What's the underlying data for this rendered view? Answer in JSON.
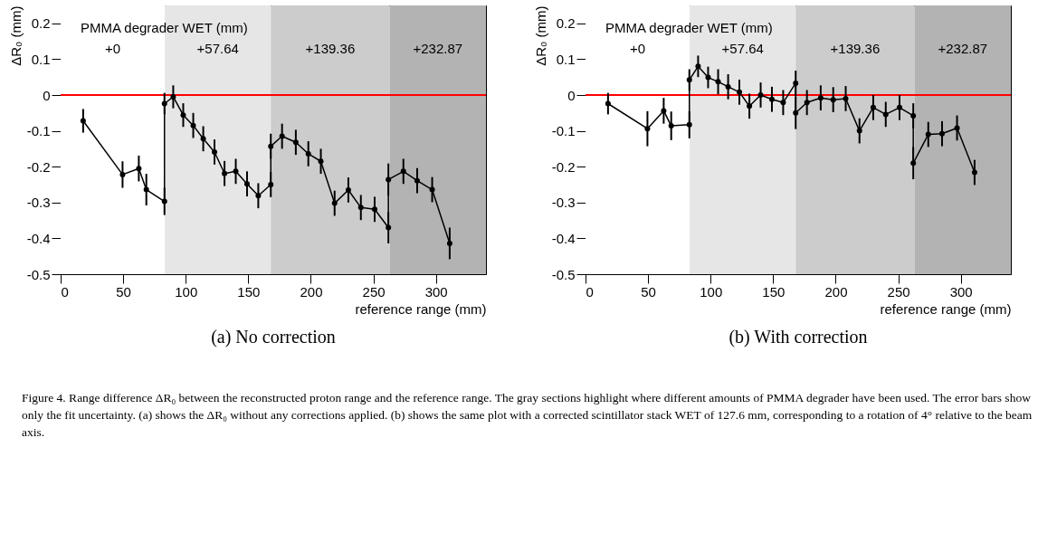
{
  "chart_data": [
    {
      "type": "line",
      "title": "(a) No correction",
      "xlabel": "reference range (mm)",
      "ylabel": "ΔR₀ (mm)",
      "xlim": [
        0,
        340
      ],
      "ylim": [
        -0.5,
        0.25
      ],
      "xticks": [
        0,
        50,
        100,
        150,
        200,
        250,
        300
      ],
      "yticks": [
        -0.5,
        -0.4,
        -0.3,
        -0.2,
        -0.1,
        0,
        0.1,
        0.2
      ],
      "marker": "circle",
      "line_style": "solid",
      "x": [
        18,
        49.5,
        62.5,
        68.5,
        83,
        83,
        90,
        98,
        106,
        114,
        123,
        131,
        140,
        149,
        158,
        168,
        168,
        177,
        188,
        198,
        208,
        219,
        230,
        240,
        251,
        262,
        262,
        274,
        285,
        297,
        311
      ],
      "series": [
        {
          "color": "#000000",
          "values": [
            -0.072,
            -0.222,
            -0.205,
            -0.264,
            -0.297,
            -0.024,
            -0.005,
            -0.056,
            -0.085,
            -0.122,
            -0.159,
            -0.219,
            -0.213,
            -0.248,
            -0.281,
            -0.25,
            -0.143,
            -0.115,
            -0.132,
            -0.164,
            -0.185,
            -0.302,
            -0.265,
            -0.314,
            -0.319,
            -0.37,
            -0.236,
            -0.213,
            -0.239,
            -0.264,
            -0.414
          ],
          "errors": [
            0.033,
            0.037,
            0.036,
            0.044,
            0.038,
            0.03,
            0.032,
            0.033,
            0.035,
            0.035,
            0.035,
            0.035,
            0.035,
            0.035,
            0.035,
            0.035,
            0.035,
            0.035,
            0.035,
            0.035,
            0.035,
            0.035,
            0.035,
            0.035,
            0.035,
            0.044,
            0.045,
            0.035,
            0.035,
            0.035,
            0.044
          ]
        }
      ],
      "ref_lines": [
        {
          "axis": "y",
          "value": 0,
          "color": "#ff0000"
        }
      ],
      "bands": [
        {
          "axis": "x",
          "from": 0,
          "to": 83.3,
          "label": "+0",
          "color": "#ffffff"
        },
        {
          "axis": "x",
          "from": 83.3,
          "to": 168,
          "label": "+57.64",
          "color": "#e6e6e6"
        },
        {
          "axis": "x",
          "from": 168,
          "to": 263,
          "label": "+139.36",
          "color": "#cccccc"
        },
        {
          "axis": "x",
          "from": 263,
          "to": 340,
          "label": "+232.87",
          "color": "#b3b3b3"
        }
      ],
      "annotations": [
        "PMMA degrader WET (mm)"
      ]
    },
    {
      "type": "line",
      "title": "(b) With correction",
      "xlabel": "reference range (mm)",
      "ylabel": "ΔR₀ (mm)",
      "xlim": [
        0,
        340
      ],
      "ylim": [
        -0.5,
        0.25
      ],
      "xticks": [
        0,
        50,
        100,
        150,
        200,
        250,
        300
      ],
      "yticks": [
        -0.5,
        -0.4,
        -0.3,
        -0.2,
        -0.1,
        0,
        0.1,
        0.2
      ],
      "marker": "circle",
      "line_style": "solid",
      "x": [
        18,
        49.5,
        62.5,
        68.5,
        83,
        83,
        90,
        98,
        106,
        114,
        123,
        131,
        140,
        149,
        158,
        168,
        168,
        177,
        188,
        198,
        208,
        219,
        230,
        240,
        251,
        262,
        262,
        274,
        285,
        297,
        311
      ],
      "series": [
        {
          "color": "#000000",
          "values": [
            -0.024,
            -0.094,
            -0.044,
            -0.086,
            -0.083,
            0.042,
            0.08,
            0.049,
            0.037,
            0.023,
            0.008,
            -0.031,
            0,
            -0.012,
            -0.021,
            0.033,
            -0.05,
            -0.021,
            -0.008,
            -0.013,
            -0.01,
            -0.1,
            -0.035,
            -0.054,
            -0.035,
            -0.058,
            -0.19,
            -0.11,
            -0.108,
            -0.092,
            -0.216
          ],
          "errors": [
            0.03,
            0.049,
            0.036,
            0.04,
            0.038,
            0.03,
            0.03,
            0.03,
            0.035,
            0.035,
            0.035,
            0.035,
            0.035,
            0.035,
            0.035,
            0.035,
            0.045,
            0.035,
            0.035,
            0.035,
            0.035,
            0.035,
            0.035,
            0.035,
            0.035,
            0.035,
            0.045,
            0.035,
            0.035,
            0.035,
            0.035
          ]
        }
      ],
      "ref_lines": [
        {
          "axis": "y",
          "value": 0,
          "color": "#ff0000"
        }
      ],
      "bands": [
        {
          "axis": "x",
          "from": 0,
          "to": 83.3,
          "label": "+0",
          "color": "#ffffff"
        },
        {
          "axis": "x",
          "from": 83.3,
          "to": 168,
          "label": "+57.64",
          "color": "#e6e6e6"
        },
        {
          "axis": "x",
          "from": 168,
          "to": 263,
          "label": "+139.36",
          "color": "#cccccc"
        },
        {
          "axis": "x",
          "from": 263,
          "to": 340,
          "label": "+232.87",
          "color": "#b3b3b3"
        }
      ],
      "annotations": [
        "PMMA degrader WET (mm)",
        "Figure 4. Range difference ΔR₀ between the reconstructed proton range and the reference range. The gray sections highlight where different amounts of PMMA degrader have been used. The error bars show only the fit uncertainty. (a) shows the ΔR₀ without any corrections applied. (b) shows the same plot with a corrected scintillator stack WET of 127.6 mm, corresponding to a rotation of 4° relative to the beam axis."
      ]
    }
  ]
}
